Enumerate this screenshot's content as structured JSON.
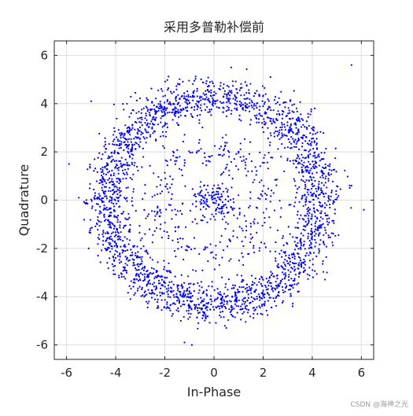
{
  "chart_data": {
    "type": "scatter",
    "title": "采用多普勒补偿前",
    "xlabel": "In-Phase",
    "ylabel": "Quadrature",
    "xlim": [
      -6.5,
      6.5
    ],
    "ylim": [
      -6.6,
      6.6
    ],
    "xticks": [
      -6,
      -4,
      -2,
      0,
      2,
      4,
      6
    ],
    "yticks": [
      -6,
      -4,
      -2,
      0,
      2,
      4,
      6
    ],
    "xtick_labels": [
      "-6",
      "-4",
      "-2",
      "0",
      "2",
      "4",
      "6"
    ],
    "ytick_labels": [
      "-6",
      "-4",
      "-2",
      "0",
      "2",
      "4",
      "6"
    ],
    "grid": true,
    "marker_color": "#0000ff",
    "marker": "dot",
    "point_count": 3000,
    "distribution": {
      "ring_radius_mean": 4.3,
      "ring_radius_spread": 0.8,
      "inner_ring_radius_mean": 2.2,
      "inner_ring_fraction": 0.1,
      "center_cluster_fraction": 0.05,
      "center_cluster_spread": 0.5
    },
    "sample_points": [
      [
        5.6,
        5.6
      ],
      [
        -5.0,
        4.1
      ],
      [
        0.7,
        5.5
      ],
      [
        2.3,
        5.1
      ],
      [
        4.1,
        3.8
      ],
      [
        5.6,
        0.6
      ],
      [
        6.1,
        -0.4
      ],
      [
        4.6,
        -3.0
      ],
      [
        3.2,
        -4.4
      ],
      [
        0.5,
        -5.3
      ],
      [
        -1.2,
        -5.9
      ],
      [
        -0.9,
        -6.0
      ],
      [
        -3.4,
        -4.1
      ],
      [
        -5.1,
        -2.0
      ],
      [
        -5.9,
        1.5
      ],
      [
        -5.5,
        0.1
      ],
      [
        -2.6,
        3.5
      ],
      [
        -0.2,
        0.2
      ],
      [
        0.3,
        -0.5
      ],
      [
        -0.5,
        0.4
      ]
    ]
  },
  "watermark": "CSDN @海神之光"
}
